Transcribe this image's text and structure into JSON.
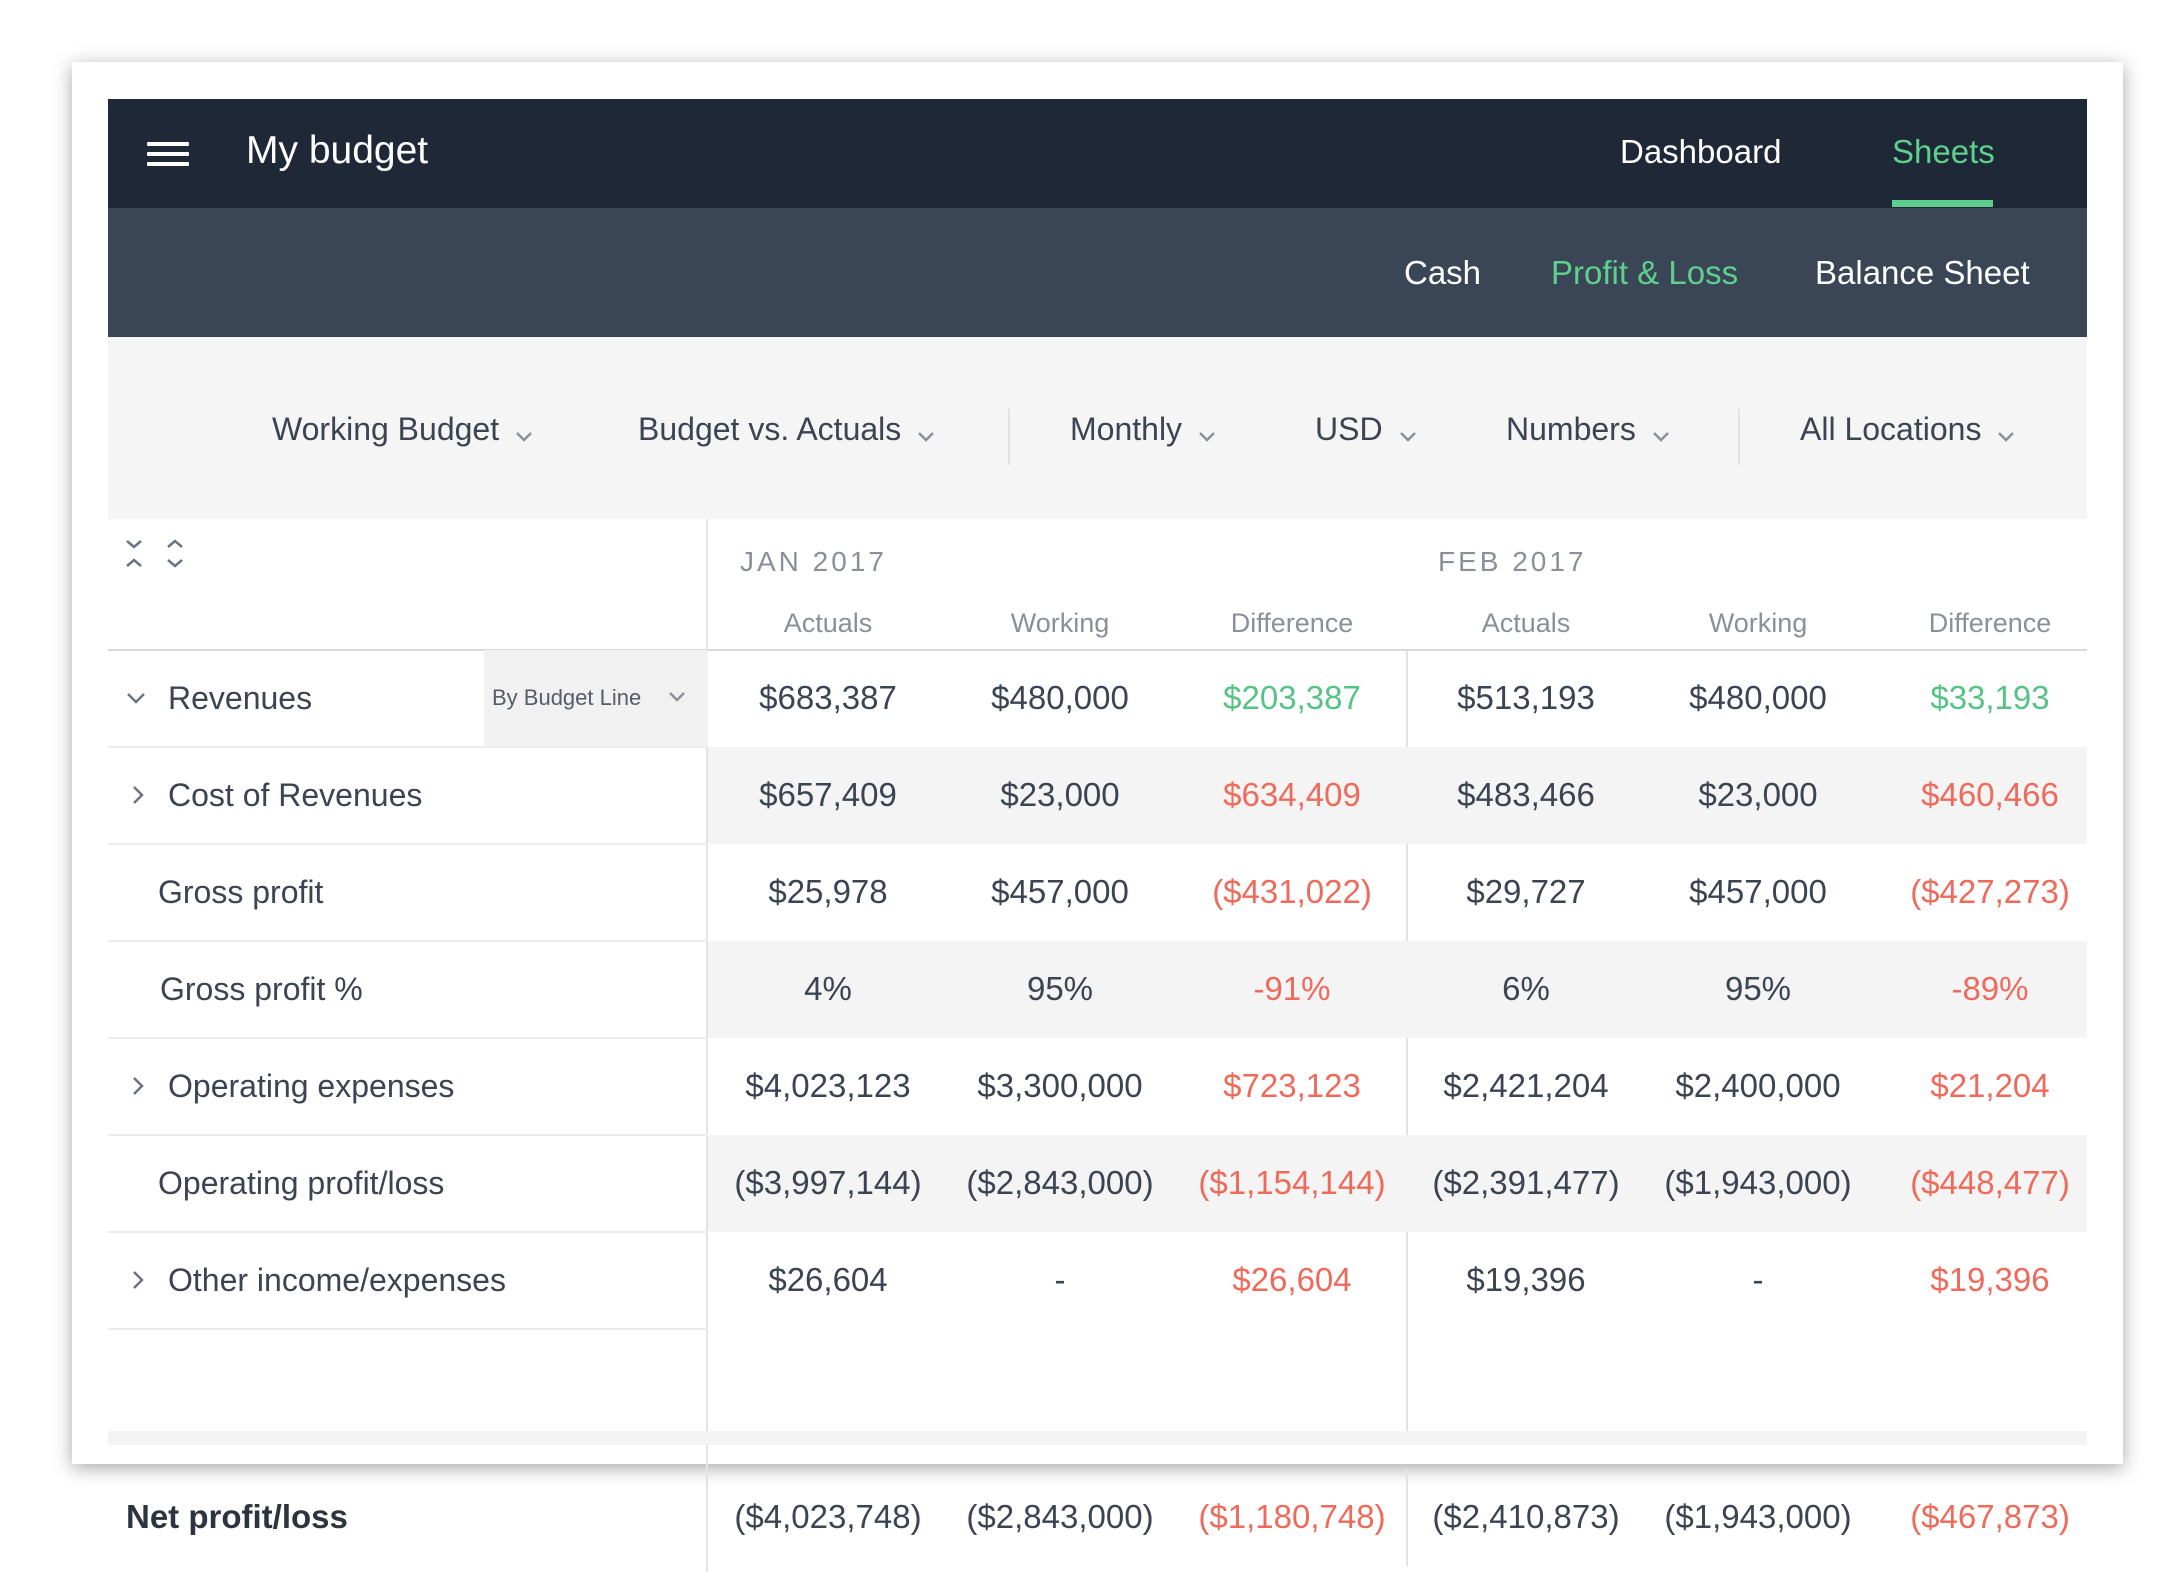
{
  "topbar": {
    "title": "My budget",
    "nav": [
      {
        "label": "Dashboard",
        "active": false
      },
      {
        "label": "Sheets",
        "active": true
      }
    ]
  },
  "subnav": [
    {
      "label": "Cash",
      "active": false
    },
    {
      "label": "Profit & Loss",
      "active": true
    },
    {
      "label": "Balance Sheet",
      "active": false
    }
  ],
  "filters": [
    {
      "label": "Working Budget"
    },
    {
      "label": "Budget vs. Actuals"
    },
    {
      "label": "Monthly"
    },
    {
      "label": "USD"
    },
    {
      "label": "Numbers"
    },
    {
      "label": "All Locations"
    }
  ],
  "table": {
    "months": [
      "JAN 2017",
      "FEB 2017"
    ],
    "columns": [
      "Actuals",
      "Working",
      "Difference",
      "Actuals",
      "Working",
      "Difference"
    ],
    "group_by": "By Budget Line",
    "rows": [
      {
        "label": "Revenues",
        "expandable": true,
        "expanded": true,
        "values": [
          "$683,387",
          "$480,000",
          "$203,387",
          "$513,193",
          "$480,000",
          "$33,193"
        ],
        "diff_status": [
          "positive",
          "positive"
        ]
      },
      {
        "label": "Cost of Revenues",
        "expandable": true,
        "expanded": false,
        "values": [
          "$657,409",
          "$23,000",
          "$634,409",
          "$483,466",
          "$23,000",
          "$460,466"
        ],
        "diff_status": [
          "negative",
          "negative"
        ]
      },
      {
        "label": "Gross profit",
        "expandable": false,
        "values": [
          "$25,978",
          "$457,000",
          "($431,022)",
          "$29,727",
          "$457,000",
          "($427,273)"
        ],
        "diff_status": [
          "negative",
          "negative"
        ]
      },
      {
        "label": "Gross profit %",
        "expandable": false,
        "values": [
          "4%",
          "95%",
          "-91%",
          "6%",
          "95%",
          "-89%"
        ],
        "diff_status": [
          "negative",
          "negative"
        ]
      },
      {
        "label": "Operating expenses",
        "expandable": true,
        "expanded": false,
        "values": [
          "$4,023,123",
          "$3,300,000",
          "$723,123",
          "$2,421,204",
          "$2,400,000",
          "$21,204"
        ],
        "diff_status": [
          "negative",
          "negative"
        ]
      },
      {
        "label": "Operating profit/loss",
        "expandable": false,
        "values": [
          "($3,997,144)",
          "($2,843,000)",
          "($1,154,144)",
          "($2,391,477)",
          "($1,943,000)",
          "($448,477)"
        ],
        "diff_status": [
          "negative",
          "negative"
        ]
      },
      {
        "label": "Other income/expenses",
        "expandable": true,
        "expanded": false,
        "values": [
          "$26,604",
          "-",
          "$26,604",
          "$19,396",
          "-",
          "$19,396"
        ],
        "diff_status": [
          "negative",
          "negative"
        ]
      }
    ],
    "total": {
      "label": "Net profit/loss",
      "values": [
        "($4,023,748)",
        "($2,843,000)",
        "($1,180,748)",
        "($2,410,873)",
        "($1,943,000)",
        "($467,873)"
      ],
      "diff_status": [
        "negative",
        "negative"
      ]
    }
  },
  "colors": {
    "topbar_bg": "#1e2836",
    "subbar_bg": "#3a4655",
    "accent_green": "#5fcf8e",
    "positive": "#56c384",
    "negative": "#ef6a5b"
  }
}
